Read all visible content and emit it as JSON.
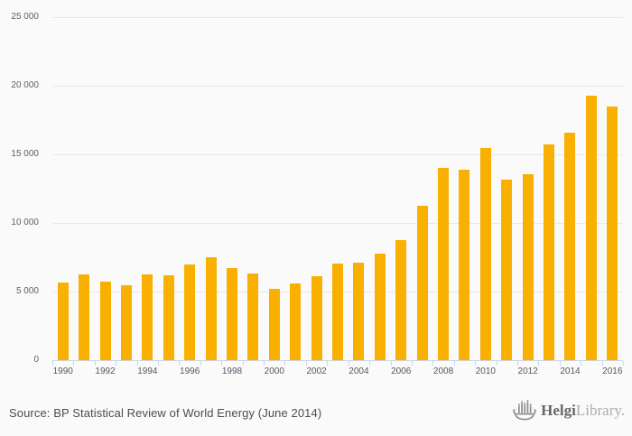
{
  "chart_data": {
    "type": "bar",
    "title": "",
    "xlabel": "",
    "ylabel": "",
    "categories": [
      "1990",
      "1991",
      "1992",
      "1993",
      "1994",
      "1995",
      "1996",
      "1997",
      "1998",
      "1999",
      "2000",
      "2001",
      "2002",
      "2003",
      "2004",
      "2005",
      "2006",
      "2007",
      "2008",
      "2009",
      "2010",
      "2011",
      "2012",
      "2013",
      "2014",
      "2015",
      "2016"
    ],
    "values": [
      5640,
      6230,
      5720,
      5480,
      6250,
      6160,
      6950,
      7520,
      6710,
      6340,
      5200,
      5610,
      6120,
      7060,
      7130,
      7780,
      8770,
      11230,
      14030,
      13900,
      15480,
      13160,
      13530,
      15750,
      16580,
      19280,
      18490
    ],
    "ylim": [
      0,
      25000
    ],
    "yticks": [
      0,
      5000,
      10000,
      15000,
      20000,
      25000
    ],
    "ytick_labels": [
      "0",
      "5 000",
      "10 000",
      "15 000",
      "20 000",
      "25 000"
    ],
    "xtick_labels": [
      "1990",
      "1992",
      "1994",
      "1996",
      "1998",
      "2000",
      "2002",
      "2004",
      "2006",
      "2008",
      "2010",
      "2012",
      "2014",
      "2016"
    ],
    "xtick_label_every": 2,
    "grid": true,
    "legend_position": "none",
    "bar_color": "#F9B001"
  },
  "colors": {
    "background": "#fafafa",
    "gridline": "#e8e8e8",
    "axis": "#ccd4e8",
    "axis_text": "#5b5f68",
    "source_text": "#4d4d4d",
    "logo_dark": "#686868",
    "logo_light": "#acacac",
    "logo_icon": "#8d8d8d"
  },
  "footer": {
    "source": "Source: BP Statistical Review of World Energy (June 2014)",
    "logo_bold": "Helgi",
    "logo_light": "Library."
  }
}
